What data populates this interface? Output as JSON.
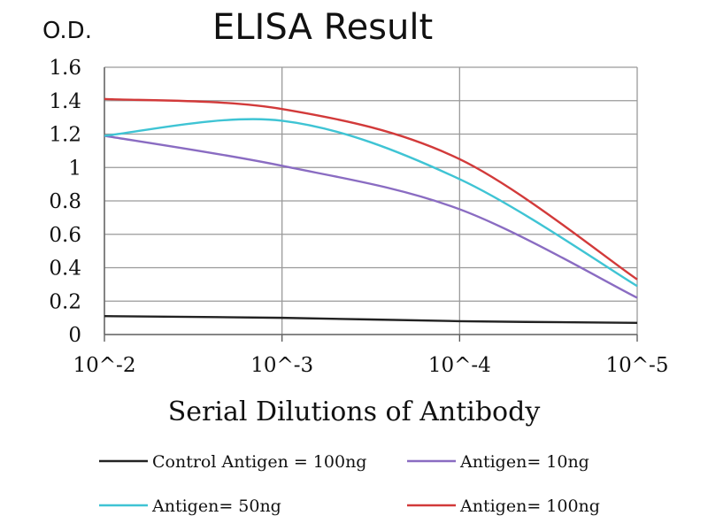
{
  "chart_data": {
    "type": "line",
    "title": "ELISA Result",
    "ylabel": "O.D.",
    "xlabel": "Serial Dilutions of Antibody",
    "x": [
      "10^-2",
      "10^-3",
      "10^-4",
      "10^-5"
    ],
    "yticks": [
      "0",
      "0.2",
      "0.4",
      "0.6",
      "0.8",
      "1",
      "1.2",
      "1.4",
      "1.6"
    ],
    "ylim": [
      0,
      1.6
    ],
    "grid": true,
    "legend_position": "bottom",
    "series": [
      {
        "name": "Control Antigen = 100ng",
        "color": "#222222",
        "values": [
          0.11,
          0.1,
          0.08,
          0.07
        ]
      },
      {
        "name": "Antigen= 10ng",
        "color": "#8a6cc2",
        "values": [
          1.19,
          1.01,
          0.75,
          0.22
        ]
      },
      {
        "name": "Antigen= 50ng",
        "color": "#3fc4d4",
        "values": [
          1.19,
          1.28,
          0.93,
          0.29
        ]
      },
      {
        "name": "Antigen= 100ng",
        "color": "#d23a3a",
        "values": [
          1.41,
          1.35,
          1.05,
          0.33
        ]
      }
    ]
  }
}
